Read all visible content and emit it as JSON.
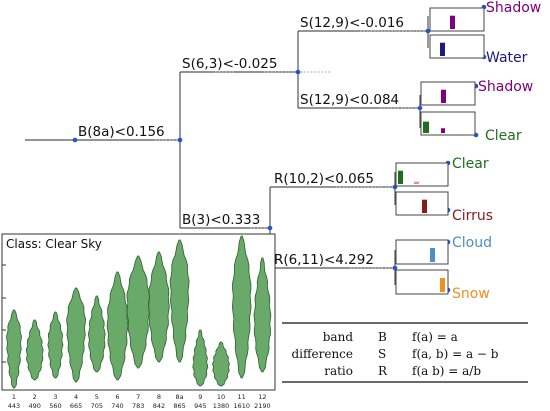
{
  "tree": {
    "root_split": "B(8a)<0.156",
    "upper_split": "S(6,3)<-0.025",
    "lower_split": "B(3)<0.333",
    "node_s12_9_a": "S(12,9)<-0.016",
    "node_s12_9_b": "S(12,9)<0.084",
    "node_r10_2": "R(10,2)<0.065",
    "node_r6_11": "R(6,11)<4.292"
  },
  "leaves": [
    {
      "label": "Shadow",
      "color": "#800080",
      "bar_color": "#800080",
      "bar_level": 0.7
    },
    {
      "label": "Water",
      "color": "#1a1a80",
      "bar_color": "#1a1a80",
      "bar_level": 0.7
    },
    {
      "label": "Shadow",
      "color": "#800080",
      "bar_color": "#800080",
      "bar_level": 0.7
    },
    {
      "label": "Clear",
      "color": "#1f6f1f",
      "bar_color": "#1f6f1f",
      "bar_level": 0.6
    },
    {
      "label": "Clear",
      "color": "#1f6f1f",
      "bar_color": "#1f6f1f",
      "bar_level": 0.7
    },
    {
      "label": "Cirrus",
      "color": "#8b1a1a",
      "bar_color": "#8b1a1a",
      "bar_level": 0.7
    },
    {
      "label": "Cloud",
      "color": "#4a8fc7",
      "bar_color": "#4a8fc7",
      "bar_level": 0.7
    },
    {
      "label": "Snow",
      "color": "#f09020",
      "bar_color": "#f09020",
      "bar_level": 0.7
    }
  ],
  "legend_table": {
    "rows": [
      {
        "name": "band",
        "symbol": "B",
        "formula": "f(a) = a"
      },
      {
        "name": "difference",
        "symbol": "S",
        "formula": "f(a, b) = a − b"
      },
      {
        "name": "ratio",
        "symbol": "R",
        "formula": "f(a  b) = a/b"
      }
    ]
  },
  "violin_panel": {
    "title": "Class: Clear Sky",
    "violin_color": "#4f9a4f",
    "band_labels": [
      "1",
      "2",
      "3",
      "4",
      "5",
      "6",
      "7",
      "8",
      "8a",
      "9",
      "10",
      "11",
      "12"
    ],
    "wavelengths": [
      "443",
      "490",
      "560",
      "665",
      "705",
      "740",
      "783",
      "842",
      "865",
      "945",
      "1380",
      "1610",
      "2190"
    ]
  }
}
